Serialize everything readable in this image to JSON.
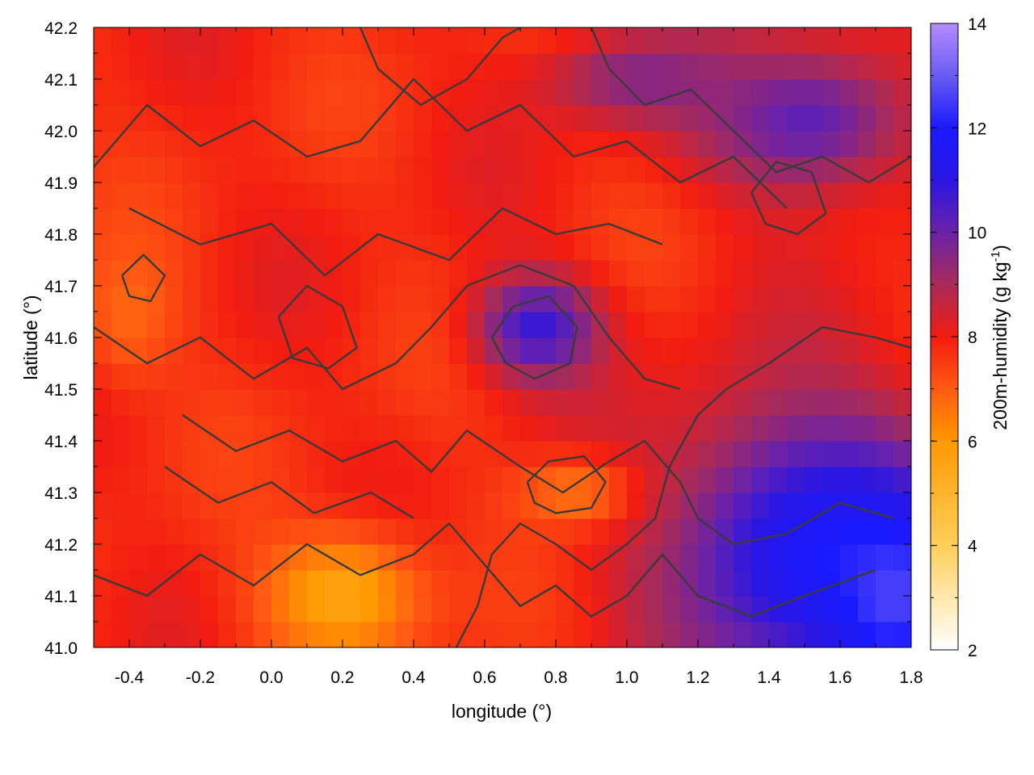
{
  "chart_data": {
    "type": "heatmap",
    "title": "",
    "xlabel": "longitude (°)",
    "ylabel": "latitude (°)",
    "colorbar_label": "200m-humidity (g kg",
    "colorbar_label_sup": "-1",
    "colorbar_label_close": ")",
    "xlim": [
      -0.5,
      1.8
    ],
    "ylim": [
      41.0,
      42.2
    ],
    "zlim": [
      2,
      14
    ],
    "x_ticks": [
      -0.4,
      -0.2,
      0.0,
      0.2,
      0.4,
      0.6,
      0.8,
      1.0,
      1.2,
      1.4,
      1.6,
      1.8
    ],
    "x_tick_labels": [
      "-0.4",
      "-0.2",
      "0.0",
      "0.2",
      "0.4",
      "0.6",
      "0.8",
      "1.0",
      "1.2",
      "1.4",
      "1.6",
      "1.8"
    ],
    "y_ticks": [
      41.0,
      41.1,
      41.2,
      41.3,
      41.4,
      41.5,
      41.6,
      41.7,
      41.8,
      41.9,
      42.0,
      42.1,
      42.2
    ],
    "y_tick_labels": [
      "41.0",
      "41.1",
      "41.2",
      "41.3",
      "41.4",
      "41.5",
      "41.6",
      "41.7",
      "41.8",
      "41.9",
      "42.0",
      "42.1",
      "42.2"
    ],
    "z_ticks": [
      2,
      4,
      6,
      8,
      10,
      12,
      14
    ],
    "z_tick_labels": [
      "2",
      "4",
      "6",
      "8",
      "10",
      "12",
      "14"
    ],
    "colormap_stops": [
      {
        "v": 2,
        "color": "#ffffff"
      },
      {
        "v": 4,
        "color": "#ffcf5a"
      },
      {
        "v": 6,
        "color": "#ff9800"
      },
      {
        "v": 7,
        "color": "#ff5a12"
      },
      {
        "v": 8,
        "color": "#f21c10"
      },
      {
        "v": 9,
        "color": "#a82a58"
      },
      {
        "v": 10,
        "color": "#6a22a8"
      },
      {
        "v": 11,
        "color": "#2a16e2"
      },
      {
        "v": 12,
        "color": "#1a1aff"
      },
      {
        "v": 13,
        "color": "#6a5cf2"
      },
      {
        "v": 14,
        "color": "#b48cff"
      }
    ],
    "field_features": [
      {
        "lon": 0.75,
        "lat": 41.62,
        "value": 10.8,
        "sigma_lon": 0.12,
        "sigma_lat": 0.07
      },
      {
        "lon": 1.55,
        "lat": 41.18,
        "value": 11.8,
        "sigma_lon": 0.3,
        "sigma_lat": 0.2
      },
      {
        "lon": 1.75,
        "lat": 41.1,
        "value": 12.6,
        "sigma_lon": 0.12,
        "sigma_lat": 0.12
      },
      {
        "lon": 1.5,
        "lat": 42.02,
        "value": 10.2,
        "sigma_lon": 0.22,
        "sigma_lat": 0.1
      },
      {
        "lon": 1.05,
        "lat": 42.1,
        "value": 9.6,
        "sigma_lon": 0.2,
        "sigma_lat": 0.06
      },
      {
        "lon": 0.85,
        "lat": 41.3,
        "value": 6.6,
        "sigma_lon": 0.12,
        "sigma_lat": 0.05
      },
      {
        "lon": 0.2,
        "lat": 41.1,
        "value": 5.6,
        "sigma_lon": 0.16,
        "sigma_lat": 0.09
      },
      {
        "lon": -0.4,
        "lat": 41.65,
        "value": 6.8,
        "sigma_lon": 0.1,
        "sigma_lat": 0.1
      }
    ],
    "contours": [
      [
        [
          -0.5,
          41.93
        ],
        [
          -0.35,
          42.05
        ],
        [
          -0.2,
          41.97
        ],
        [
          -0.05,
          42.02
        ],
        [
          0.1,
          41.95
        ],
        [
          0.25,
          41.98
        ],
        [
          0.4,
          42.1
        ],
        [
          0.55,
          42.0
        ],
        [
          0.7,
          42.05
        ],
        [
          0.85,
          41.95
        ],
        [
          1.0,
          41.98
        ],
        [
          1.15,
          41.9
        ],
        [
          1.3,
          41.95
        ],
        [
          1.45,
          41.85
        ]
      ],
      [
        [
          -0.4,
          41.85
        ],
        [
          -0.2,
          41.78
        ],
        [
          0.0,
          41.82
        ],
        [
          0.15,
          41.72
        ],
        [
          0.3,
          41.8
        ],
        [
          0.5,
          41.75
        ],
        [
          0.65,
          41.85
        ],
        [
          0.8,
          41.8
        ],
        [
          0.95,
          41.82
        ],
        [
          1.1,
          41.78
        ]
      ],
      [
        [
          -0.5,
          41.62
        ],
        [
          -0.35,
          41.55
        ],
        [
          -0.2,
          41.6
        ],
        [
          -0.05,
          41.52
        ],
        [
          0.1,
          41.58
        ],
        [
          0.2,
          41.5
        ],
        [
          0.35,
          41.55
        ],
        [
          0.45,
          41.62
        ],
        [
          0.55,
          41.7
        ],
        [
          0.7,
          41.74
        ],
        [
          0.85,
          41.7
        ],
        [
          0.95,
          41.6
        ],
        [
          1.05,
          41.52
        ],
        [
          1.15,
          41.5
        ]
      ],
      [
        [
          -0.25,
          41.45
        ],
        [
          -0.1,
          41.38
        ],
        [
          0.05,
          41.42
        ],
        [
          0.2,
          41.36
        ],
        [
          0.35,
          41.4
        ],
        [
          0.45,
          41.34
        ],
        [
          0.55,
          41.42
        ],
        [
          0.7,
          41.35
        ],
        [
          0.82,
          41.3
        ],
        [
          0.95,
          41.36
        ],
        [
          1.05,
          41.4
        ],
        [
          1.15,
          41.32
        ],
        [
          1.2,
          41.25
        ],
        [
          1.3,
          41.2
        ],
        [
          1.45,
          41.22
        ],
        [
          1.6,
          41.28
        ],
        [
          1.75,
          41.25
        ]
      ],
      [
        [
          -0.5,
          41.14
        ],
        [
          -0.35,
          41.1
        ],
        [
          -0.2,
          41.18
        ],
        [
          -0.05,
          41.12
        ],
        [
          0.1,
          41.2
        ],
        [
          0.25,
          41.14
        ],
        [
          0.4,
          41.18
        ],
        [
          0.5,
          41.24
        ],
        [
          0.6,
          41.16
        ],
        [
          0.7,
          41.08
        ],
        [
          0.8,
          41.12
        ],
        [
          0.9,
          41.06
        ],
        [
          1.0,
          41.1
        ],
        [
          1.1,
          41.18
        ],
        [
          1.2,
          41.1
        ],
        [
          1.35,
          41.06
        ],
        [
          1.5,
          41.1
        ],
        [
          1.7,
          41.15
        ]
      ],
      [
        [
          0.52,
          41.0
        ],
        [
          0.58,
          41.08
        ],
        [
          0.62,
          41.18
        ],
        [
          0.7,
          41.24
        ],
        [
          0.8,
          41.2
        ],
        [
          0.9,
          41.15
        ],
        [
          1.0,
          41.2
        ],
        [
          1.08,
          41.25
        ],
        [
          1.12,
          41.35
        ],
        [
          1.2,
          41.45
        ],
        [
          1.28,
          41.5
        ],
        [
          1.4,
          41.55
        ],
        [
          1.55,
          41.62
        ],
        [
          1.7,
          41.6
        ],
        [
          1.8,
          41.58
        ]
      ],
      [
        [
          0.9,
          42.2
        ],
        [
          0.95,
          42.12
        ],
        [
          1.05,
          42.05
        ],
        [
          1.18,
          42.08
        ],
        [
          1.3,
          42.0
        ],
        [
          1.42,
          41.92
        ],
        [
          1.55,
          41.95
        ],
        [
          1.68,
          41.9
        ],
        [
          1.8,
          41.95
        ]
      ],
      [
        [
          0.25,
          42.2
        ],
        [
          0.3,
          42.12
        ],
        [
          0.42,
          42.05
        ],
        [
          0.55,
          42.1
        ],
        [
          0.65,
          42.18
        ],
        [
          0.7,
          42.2
        ]
      ],
      [
        [
          -0.3,
          41.35
        ],
        [
          -0.15,
          41.28
        ],
        [
          0.0,
          41.32
        ],
        [
          0.12,
          41.26
        ],
        [
          0.28,
          41.3
        ],
        [
          0.4,
          41.25
        ]
      ],
      [
        [
          0.62,
          41.6
        ],
        [
          0.68,
          41.66
        ],
        [
          0.78,
          41.68
        ],
        [
          0.86,
          41.62
        ],
        [
          0.84,
          41.55
        ],
        [
          0.74,
          41.52
        ],
        [
          0.66,
          41.55
        ],
        [
          0.62,
          41.6
        ]
      ],
      [
        [
          0.72,
          41.32
        ],
        [
          0.78,
          41.36
        ],
        [
          0.88,
          41.37
        ],
        [
          0.94,
          41.32
        ],
        [
          0.9,
          41.27
        ],
        [
          0.8,
          41.26
        ],
        [
          0.74,
          41.28
        ],
        [
          0.72,
          41.32
        ]
      ],
      [
        [
          1.35,
          41.88
        ],
        [
          1.42,
          41.94
        ],
        [
          1.52,
          41.92
        ],
        [
          1.56,
          41.84
        ],
        [
          1.48,
          41.8
        ],
        [
          1.39,
          41.82
        ],
        [
          1.35,
          41.88
        ]
      ],
      [
        [
          -0.42,
          41.72
        ],
        [
          -0.36,
          41.76
        ],
        [
          -0.3,
          41.72
        ],
        [
          -0.34,
          41.67
        ],
        [
          -0.4,
          41.68
        ],
        [
          -0.42,
          41.72
        ]
      ],
      [
        [
          0.02,
          41.64
        ],
        [
          0.1,
          41.7
        ],
        [
          0.2,
          41.66
        ],
        [
          0.24,
          41.58
        ],
        [
          0.16,
          41.54
        ],
        [
          0.06,
          41.56
        ],
        [
          0.02,
          41.64
        ]
      ]
    ]
  }
}
